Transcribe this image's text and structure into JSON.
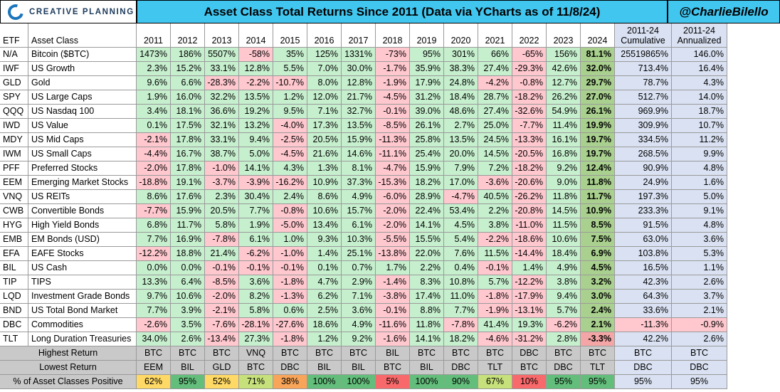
{
  "brand": "CREATIVE PLANNING",
  "title": "Asset Class Total Returns Since 2011 (Data via YCharts as of 11/8/24)",
  "handle": "@CharlieBilello",
  "chart_data": {
    "type": "table",
    "columns": [
      "ETF",
      "Asset Class",
      "2011",
      "2012",
      "2013",
      "2014",
      "2015",
      "2016",
      "2017",
      "2018",
      "2019",
      "2020",
      "2021",
      "2022",
      "2023",
      "2024",
      "2011-24 Cumulative",
      "2011-24 Annualized"
    ],
    "rows": [
      [
        "N/A",
        "Bitcoin ($BTC)",
        "1473%",
        "186%",
        "5507%",
        "-58%",
        "35%",
        "125%",
        "1331%",
        "-73%",
        "95%",
        "301%",
        "66%",
        "-65%",
        "156%",
        "81.1%",
        "25519865%",
        "146.0%"
      ],
      [
        "IWF",
        "US Growth",
        "2.3%",
        "15.2%",
        "33.1%",
        "12.8%",
        "5.5%",
        "7.0%",
        "30.0%",
        "-1.7%",
        "35.9%",
        "38.3%",
        "27.4%",
        "-29.3%",
        "42.6%",
        "32.0%",
        "713.4%",
        "16.4%"
      ],
      [
        "GLD",
        "Gold",
        "9.6%",
        "6.6%",
        "-28.3%",
        "-2.2%",
        "-10.7%",
        "8.0%",
        "12.8%",
        "-1.9%",
        "17.9%",
        "24.8%",
        "-4.2%",
        "-0.8%",
        "12.7%",
        "29.7%",
        "78.7%",
        "4.3%"
      ],
      [
        "SPY",
        "US Large Caps",
        "1.9%",
        "16.0%",
        "32.2%",
        "13.5%",
        "1.2%",
        "12.0%",
        "21.7%",
        "-4.5%",
        "31.2%",
        "18.4%",
        "28.7%",
        "-18.2%",
        "26.2%",
        "27.0%",
        "512.7%",
        "14.0%"
      ],
      [
        "QQQ",
        "US Nasdaq 100",
        "3.4%",
        "18.1%",
        "36.6%",
        "19.2%",
        "9.5%",
        "7.1%",
        "32.7%",
        "-0.1%",
        "39.0%",
        "48.6%",
        "27.4%",
        "-32.6%",
        "54.9%",
        "26.1%",
        "969.9%",
        "18.7%"
      ],
      [
        "IWD",
        "US Value",
        "0.1%",
        "17.5%",
        "32.1%",
        "13.2%",
        "-4.0%",
        "17.3%",
        "13.5%",
        "-8.5%",
        "26.1%",
        "2.7%",
        "25.0%",
        "-7.7%",
        "11.4%",
        "19.9%",
        "309.9%",
        "10.7%"
      ],
      [
        "MDY",
        "US Mid Caps",
        "-2.1%",
        "17.8%",
        "33.1%",
        "9.4%",
        "-2.5%",
        "20.5%",
        "15.9%",
        "-11.3%",
        "25.8%",
        "13.5%",
        "24.5%",
        "-13.3%",
        "16.1%",
        "19.7%",
        "334.5%",
        "11.2%"
      ],
      [
        "IWM",
        "US Small Caps",
        "-4.4%",
        "16.7%",
        "38.7%",
        "5.0%",
        "-4.5%",
        "21.6%",
        "14.6%",
        "-11.1%",
        "25.4%",
        "20.0%",
        "14.5%",
        "-20.5%",
        "16.8%",
        "19.7%",
        "268.5%",
        "9.9%"
      ],
      [
        "PFF",
        "Preferred Stocks",
        "-2.0%",
        "17.8%",
        "-1.0%",
        "14.1%",
        "4.3%",
        "1.3%",
        "8.1%",
        "-4.7%",
        "15.9%",
        "7.9%",
        "7.2%",
        "-18.2%",
        "9.2%",
        "12.4%",
        "90.9%",
        "4.8%"
      ],
      [
        "EEM",
        "Emerging Market Stocks",
        "-18.8%",
        "19.1%",
        "-3.7%",
        "-3.9%",
        "-16.2%",
        "10.9%",
        "37.3%",
        "-15.3%",
        "18.2%",
        "17.0%",
        "-3.6%",
        "-20.6%",
        "9.0%",
        "11.8%",
        "24.9%",
        "1.6%"
      ],
      [
        "VNQ",
        "US REITs",
        "8.6%",
        "17.6%",
        "2.3%",
        "30.4%",
        "2.4%",
        "8.6%",
        "4.9%",
        "-6.0%",
        "28.9%",
        "-4.7%",
        "40.5%",
        "-26.2%",
        "11.8%",
        "11.7%",
        "197.3%",
        "5.0%"
      ],
      [
        "CWB",
        "Convertible Bonds",
        "-7.7%",
        "15.9%",
        "20.5%",
        "7.7%",
        "-0.8%",
        "10.6%",
        "15.7%",
        "-2.0%",
        "22.4%",
        "53.4%",
        "2.2%",
        "-20.8%",
        "14.5%",
        "10.9%",
        "233.3%",
        "9.1%"
      ],
      [
        "HYG",
        "High Yield Bonds",
        "6.8%",
        "11.7%",
        "5.8%",
        "1.9%",
        "-5.0%",
        "13.4%",
        "6.1%",
        "-2.0%",
        "14.1%",
        "4.5%",
        "3.8%",
        "-11.0%",
        "11.5%",
        "8.5%",
        "91.5%",
        "4.8%"
      ],
      [
        "EMB",
        "EM Bonds (USD)",
        "7.7%",
        "16.9%",
        "-7.8%",
        "6.1%",
        "1.0%",
        "9.3%",
        "10.3%",
        "-5.5%",
        "15.5%",
        "5.4%",
        "-2.2%",
        "-18.6%",
        "10.6%",
        "7.5%",
        "63.0%",
        "3.6%"
      ],
      [
        "EFA",
        "EAFE Stocks",
        "-12.2%",
        "18.8%",
        "21.4%",
        "-6.2%",
        "-1.0%",
        "1.4%",
        "25.1%",
        "-13.8%",
        "22.0%",
        "7.6%",
        "11.5%",
        "-14.4%",
        "18.4%",
        "6.9%",
        "103.8%",
        "5.3%"
      ],
      [
        "BIL",
        "US Cash",
        "0.0%",
        "0.0%",
        "-0.1%",
        "-0.1%",
        "-0.1%",
        "0.1%",
        "0.7%",
        "1.7%",
        "2.2%",
        "0.4%",
        "-0.1%",
        "1.4%",
        "4.9%",
        "4.5%",
        "16.5%",
        "1.1%"
      ],
      [
        "TIP",
        "TIPS",
        "13.3%",
        "6.4%",
        "-8.5%",
        "3.6%",
        "-1.8%",
        "4.7%",
        "2.9%",
        "-1.4%",
        "8.3%",
        "10.8%",
        "5.7%",
        "-12.2%",
        "3.8%",
        "3.2%",
        "42.3%",
        "2.6%"
      ],
      [
        "LQD",
        "Investment Grade Bonds",
        "9.7%",
        "10.6%",
        "-2.0%",
        "8.2%",
        "-1.3%",
        "6.2%",
        "7.1%",
        "-3.8%",
        "17.4%",
        "11.0%",
        "-1.8%",
        "-17.9%",
        "9.4%",
        "3.0%",
        "64.3%",
        "3.7%"
      ],
      [
        "BND",
        "US Total Bond Market",
        "7.7%",
        "3.9%",
        "-2.1%",
        "5.8%",
        "0.6%",
        "2.5%",
        "3.6%",
        "-0.1%",
        "8.8%",
        "7.7%",
        "-1.9%",
        "-13.1%",
        "5.7%",
        "2.4%",
        "33.6%",
        "2.1%"
      ],
      [
        "DBC",
        "Commodities",
        "-2.6%",
        "3.5%",
        "-7.6%",
        "-28.1%",
        "-27.6%",
        "18.6%",
        "4.9%",
        "-11.6%",
        "11.8%",
        "-7.8%",
        "41.4%",
        "19.3%",
        "-6.2%",
        "2.1%",
        "-11.3%",
        "-0.9%"
      ],
      [
        "TLT",
        "Long Duration Treasuries",
        "34.0%",
        "2.6%",
        "-13.4%",
        "27.3%",
        "-1.8%",
        "1.2%",
        "9.2%",
        "-1.6%",
        "14.1%",
        "18.2%",
        "-4.6%",
        "-31.2%",
        "2.8%",
        "-3.3%",
        "42.2%",
        "2.6%"
      ]
    ],
    "summary": [
      {
        "label": "Highest Return",
        "values": [
          "BTC",
          "BTC",
          "BTC",
          "VNQ",
          "BTC",
          "BTC",
          "BTC",
          "BIL",
          "BTC",
          "BTC",
          "BTC",
          "DBC",
          "BTC",
          "BTC",
          "BTC",
          "BTC"
        ]
      },
      {
        "label": "Lowest Return",
        "values": [
          "EEM",
          "BIL",
          "GLD",
          "BTC",
          "DBC",
          "BIL",
          "BIL",
          "BTC",
          "BIL",
          "DBC",
          "TLT",
          "BTC",
          "DBC",
          "TLT",
          "DBC",
          "DBC"
        ]
      },
      {
        "label": "% of Asset Classes Positive",
        "values": [
          "62%",
          "95%",
          "52%",
          "71%",
          "38%",
          "100%",
          "100%",
          "5%",
          "100%",
          "90%",
          "67%",
          "10%",
          "95%",
          "95%",
          "95%",
          "95%"
        ]
      }
    ],
    "colors": {
      "positive_light": "#c6efce",
      "positive_dark": "#8fd18f",
      "negative": "#ffc7ce",
      "col2024_positive": "#a9d08e",
      "col2024_negative": "#f4a6a6",
      "summary_fill": "#d9e1f2",
      "header_fill": "#d9e1f2",
      "title_fill": "#41c6f0"
    }
  }
}
